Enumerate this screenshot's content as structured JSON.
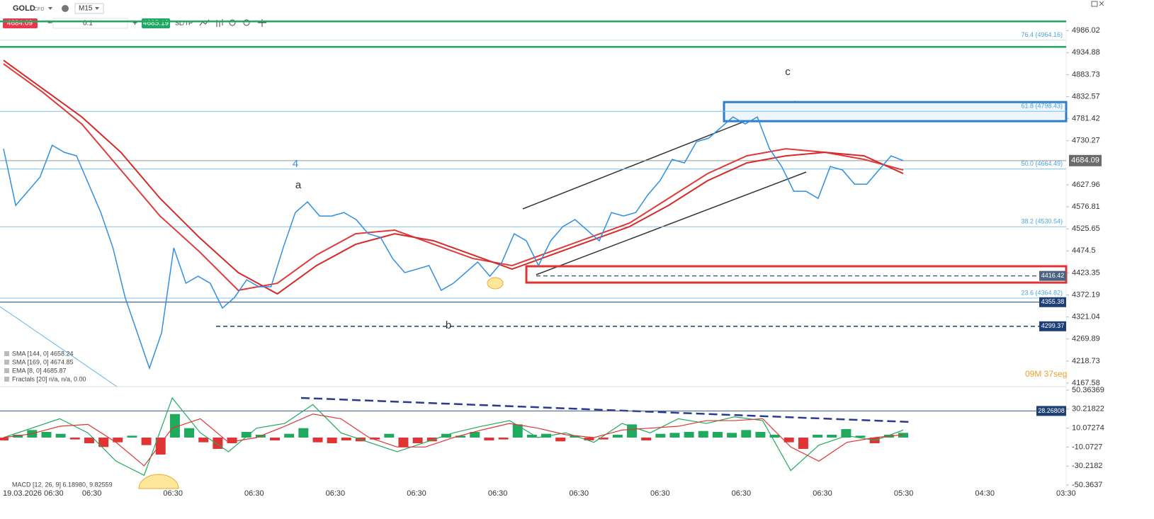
{
  "toolbar": {
    "symbol": "GOLD",
    "instrument_type": "CFD",
    "timeframe": "M15",
    "sell_price": "4684.09",
    "volume": "0.1",
    "buy_price": "4685.19",
    "sltp": "SL/TP"
  },
  "price_chart": {
    "ylim": [
      4161,
      5011
    ],
    "yticks": [
      4986.02,
      4934.88,
      4883.73,
      4832.57,
      4781.42,
      4730.27,
      4627.96,
      4576.81,
      4525.65,
      4474.5,
      4423.35,
      4372.19,
      4321.04,
      4269.89,
      4218.73,
      4167.58
    ],
    "green_lines": [
      5007.4,
      4948.2
    ],
    "fib_levels": [
      {
        "label": "76.4 (4964.16)",
        "value": 4964.16
      },
      {
        "label": "61.8 (4798.43)",
        "value": 4798.43
      },
      {
        "label": "50.0 (4664.49)",
        "value": 4664.49
      },
      {
        "label": "38.2 (4530.54)",
        "value": 4530.54
      },
      {
        "label": "23.6 (4364.82)",
        "value": 4364.82
      }
    ],
    "price_lines": [
      {
        "value": 4416.42,
        "color": "#4d6382",
        "dashed": true
      },
      {
        "value": 4355.38,
        "color": "#1d3f75",
        "dashed": false
      },
      {
        "value": 4299.37,
        "color": "#1d3f75",
        "dashed": true
      }
    ],
    "current_price": 4684.09,
    "zones": [
      {
        "top": 4820.0,
        "bottom": 4775.7,
        "color": "#2f7fc8"
      },
      {
        "top": 4438.8,
        "bottom": 4400.9,
        "color": "#e03434"
      }
    ],
    "lines": [
      {
        "color": "#e03a3a",
        "values": [
          4908.8,
          4843.0,
          4769.1,
          4662.3,
          4555.4,
          4473.3,
          4382.9,
          4399.3,
          4465.0,
          4514.3,
          4522.6,
          4489.7,
          4456.8,
          4440.4,
          4473.3,
          4506.1,
          4539.0,
          4596.5,
          4654.0,
          4695.1,
          4711.6,
          4703.3,
          4686.9,
          4662.3
        ]
      },
      {
        "color": "#d42a2a",
        "values": [
          4917.0,
          4851.2,
          4785.5,
          4703.3,
          4596.5,
          4506.1,
          4424.0,
          4374.7,
          4440.4,
          4489.7,
          4514.3,
          4497.9,
          4465.0,
          4432.2,
          4465.0,
          4497.9,
          4530.8,
          4580.1,
          4637.6,
          4678.7,
          4695.1,
          4703.3,
          4695.1,
          4654.0
        ]
      },
      {
        "color": "#2f8fe0",
        "values": [
          4711.6,
          4580.1,
          4612.9,
          4645.8,
          4719.8,
          4703.3,
          4695.1,
          4629.4,
          4563.6,
          4481.5,
          4366.4,
          4284.3,
          4202.1,
          4284.3,
          4481.5,
          4399.3,
          4415.7,
          4399.3,
          4341.8,
          4366.4,
          4407.5,
          4391.1,
          4391.1,
          4481.5,
          4563.6,
          4588.3,
          4555.4,
          4555.4,
          4563.6,
          4547.2,
          4514.3,
          4506.1,
          4456.8,
          4424.0,
          4432.2,
          4440.4,
          4382.9,
          4399.3,
          4424.0,
          4448.6,
          4415.7,
          4448.6,
          4514.3,
          4497.9,
          4440.4,
          4497.9,
          4530.8,
          4547.2,
          4522.6,
          4497.9,
          4563.6,
          4555.4,
          4563.6,
          4604.7,
          4637.6,
          4686.9,
          4678.7,
          4728.0,
          4736.2,
          4760.9,
          4785.5,
          4769.1,
          4785.5,
          4711.6,
          4670.5,
          4612.9,
          4612.9,
          4596.5,
          4670.5,
          4662.3,
          4629.4,
          4629.4,
          4662.3,
          4695.1,
          4684.09
        ]
      }
    ],
    "annotations": [
      "a",
      "b",
      "c",
      "4"
    ],
    "indicators": [
      "SMA [144, 0] 4658.24",
      "SMA [169, 0] 4674.85",
      "EMA [8, 0] 4685.87",
      "Fractals [20] n/a, n/a, 0.00"
    ],
    "timer": "09M 37seg"
  },
  "macd_chart": {
    "ylim": [
      -52.6,
      52.6
    ],
    "yticks": [
      50.36369,
      30.21822,
      10.07274,
      -10.0727,
      -30.2182,
      -50.3637
    ],
    "levels": [
      28.26808
    ],
    "label": "MACD [12, 26, 9] 6.18980, 9.82559",
    "histogram": [
      -3,
      3,
      8,
      6,
      4,
      -2,
      -6,
      -10,
      -5,
      2,
      -8,
      -18,
      25,
      10,
      -5,
      -12,
      -6,
      6,
      3,
      -3,
      4,
      10,
      -5,
      -6,
      -3,
      -4,
      -2,
      4,
      -10,
      -6,
      -4,
      4,
      2,
      6,
      -3,
      -2,
      14,
      3,
      4,
      -4,
      2,
      -3,
      -2,
      3,
      14,
      -3,
      4,
      5,
      6,
      7,
      6,
      5,
      8,
      6,
      3,
      -5,
      -12,
      3,
      3,
      9,
      2,
      -6,
      3,
      5
    ],
    "macd": [
      0,
      10,
      20,
      5,
      -25,
      -40,
      42,
      5,
      -15,
      10,
      15,
      35,
      5,
      -5,
      -15,
      -5,
      5,
      12,
      18,
      0,
      5,
      -5,
      15,
      5,
      20,
      15,
      22,
      18,
      -35,
      -8,
      2,
      -3,
      8
    ],
    "signal": [
      0,
      4,
      12,
      14,
      -5,
      -30,
      10,
      20,
      -5,
      0,
      12,
      25,
      20,
      0,
      -10,
      -10,
      0,
      8,
      15,
      10,
      3,
      0,
      8,
      10,
      12,
      18,
      18,
      20,
      -10,
      -25,
      -5,
      0,
      3
    ]
  },
  "time_axis": [
    "19.03.2026 06:30",
    "06:30",
    "06:30",
    "06:30",
    "06:30",
    "06:30",
    "06:30",
    "06:30",
    "06:30",
    "06:30",
    "06:30",
    "05:30",
    "04:30",
    "03:30"
  ]
}
